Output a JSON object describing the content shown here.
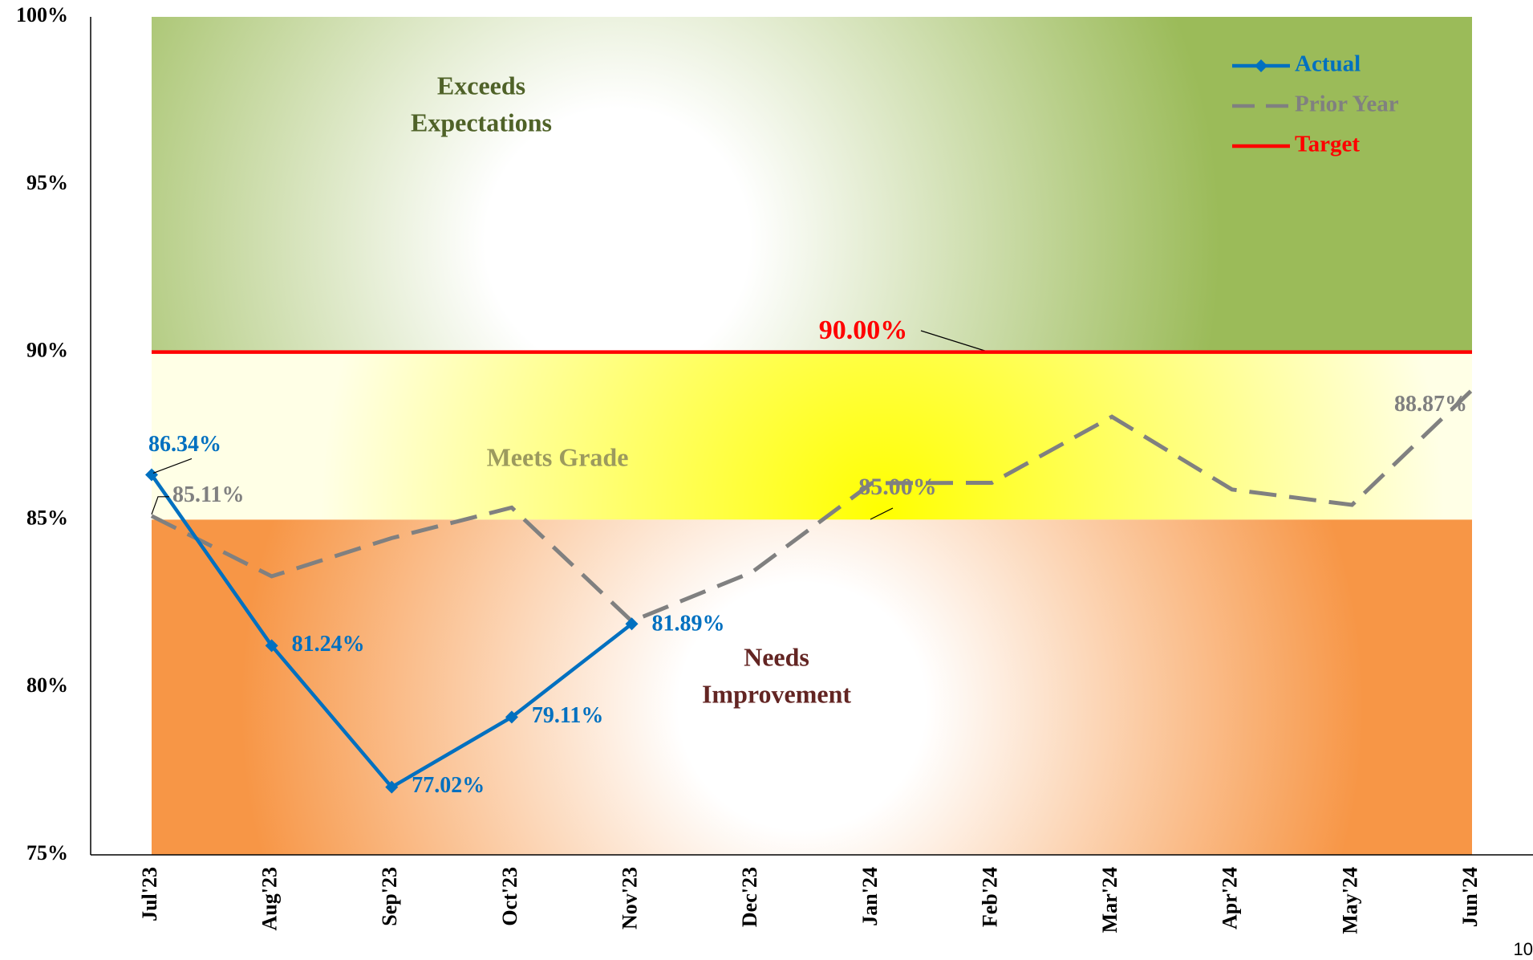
{
  "chart_data": {
    "type": "line",
    "categories": [
      "Jul'23",
      "Aug'23",
      "Sep'23",
      "Oct'23",
      "Nov'23",
      "Dec'23",
      "Jan'24",
      "Feb'24",
      "Mar'24",
      "Apr'24",
      "May'24",
      "Jun'24"
    ],
    "series": [
      {
        "name": "Actual",
        "color": "#0070c0",
        "style": "solid",
        "marker": "diamond",
        "values": [
          86.34,
          81.24,
          77.02,
          79.11,
          81.89,
          null,
          null,
          null,
          null,
          null,
          null,
          null
        ],
        "value_labels": [
          "86.34%",
          "81.24%",
          "77.02%",
          "79.11%",
          "81.89%",
          null,
          null,
          null,
          null,
          null,
          null,
          null
        ]
      },
      {
        "name": "Prior Year",
        "color": "#808080",
        "style": "dashed",
        "values": [
          85.11,
          83.31,
          84.45,
          85.36,
          81.97,
          83.43,
          86.09,
          86.1,
          88.07,
          85.9,
          85.44,
          88.87
        ],
        "value_labels": [
          "85.11%",
          null,
          null,
          null,
          null,
          null,
          null,
          null,
          null,
          null,
          null,
          "88.87%"
        ]
      },
      {
        "name": "Target",
        "color": "#ff0000",
        "style": "solid",
        "values": [
          90,
          90,
          90,
          90,
          90,
          90,
          90,
          90,
          90,
          90,
          90,
          90
        ]
      }
    ],
    "bands": [
      {
        "label": [
          "Exceeds",
          "Expectations"
        ],
        "from": 90,
        "to": 100,
        "color": "#9bbb59",
        "label_color": "#4f6228"
      },
      {
        "label": [
          "Meets Grade"
        ],
        "from": 85,
        "to": 90,
        "color": "#ffff00",
        "label_color": "#9c9a5e"
      },
      {
        "label": [
          "Needs",
          "Improvement"
        ],
        "from": 75,
        "to": 85,
        "color": "#f79646",
        "label_color": "#632523"
      }
    ],
    "annotations": [
      {
        "text": "90.00%",
        "color": "#ff0000"
      },
      {
        "text": "85.00%",
        "color": "#808080"
      }
    ],
    "ylim": [
      75,
      100
    ],
    "yticks": [
      {
        "value": 75,
        "label": "75%"
      },
      {
        "value": 80,
        "label": "80%"
      },
      {
        "value": 85,
        "label": "85%"
      },
      {
        "value": 90,
        "label": "90%"
      },
      {
        "value": 95,
        "label": "95%"
      },
      {
        "value": 100,
        "label": "100%"
      }
    ],
    "legend": "top-right",
    "page_number": "10"
  }
}
